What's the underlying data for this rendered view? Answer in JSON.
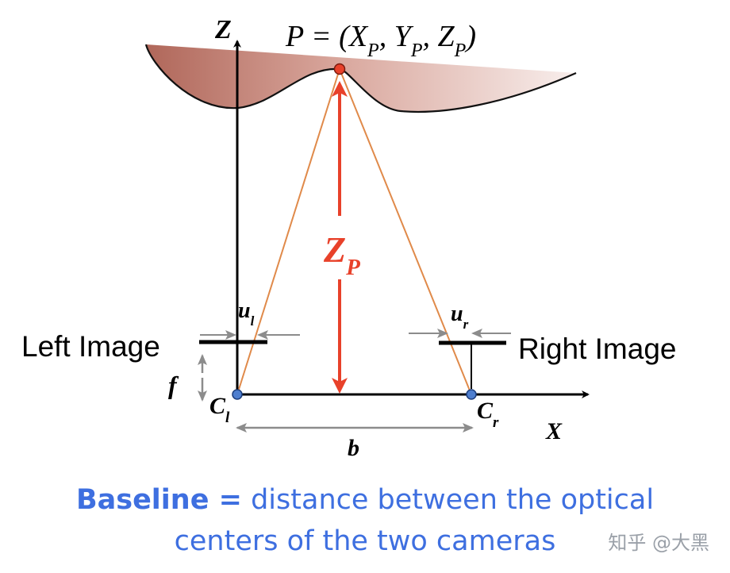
{
  "diagram": {
    "point_label": "P = (X_P, Y_P, Z_P)",
    "axis_z": "Z",
    "axis_x": "X",
    "depth_label": "Z_P",
    "left_image_label": "Left Image",
    "right_image_label": "Right Image",
    "focal_label": "f",
    "left_camera_label": "C_l",
    "right_camera_label": "C_r",
    "left_offset_label": "u_l",
    "right_offset_label": "u_r",
    "baseline_label": "b"
  },
  "caption": {
    "bold": "Baseline =",
    "line1": " distance between the optical",
    "line2": "centers of the two cameras"
  },
  "watermark": "知乎 @大黑",
  "colors": {
    "surface_dark": "#b0675a",
    "surface_light": "#f4e6e4",
    "ray": "#e08a4a",
    "depth": "#e8412a",
    "camera": "#4f7fcf",
    "caption": "#3e6fe0",
    "gray_arrow": "#8c8c8c"
  }
}
